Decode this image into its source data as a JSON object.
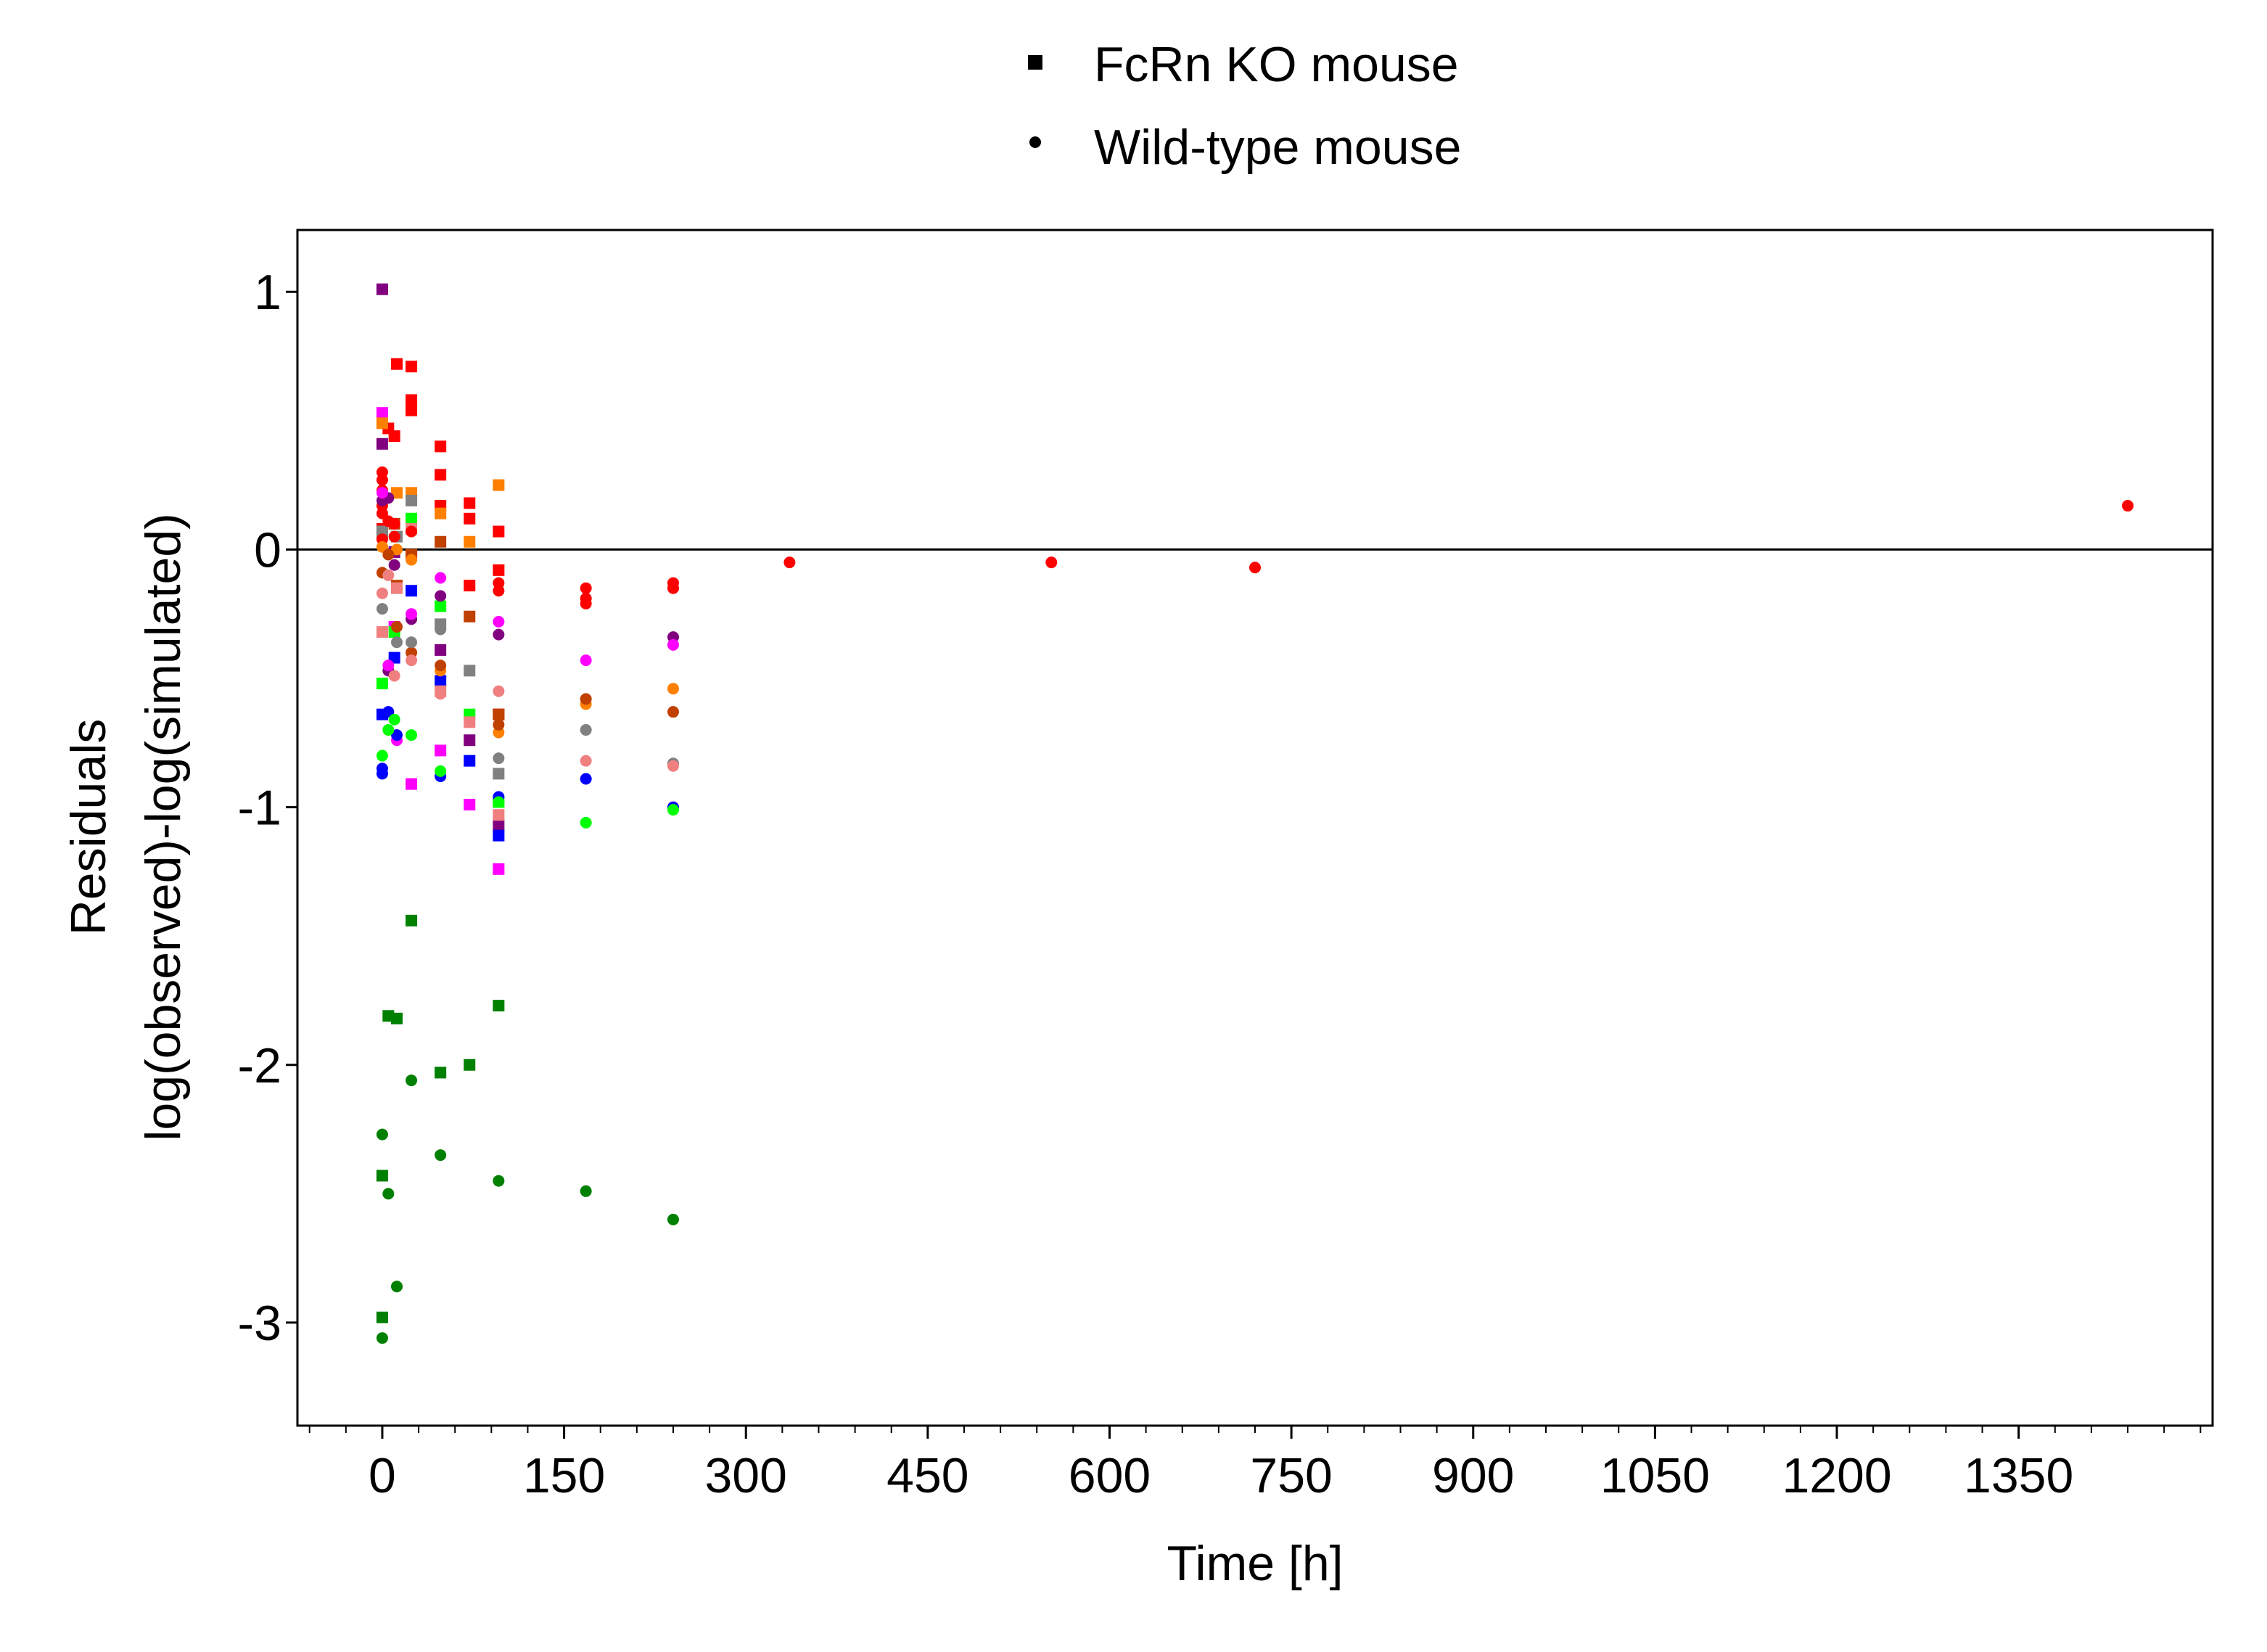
{
  "chart_data": {
    "type": "scatter",
    "xlabel": "Time [h]",
    "ylabel_line1": "Residuals",
    "ylabel_line2": "log(observed)-log(simulated)",
    "xlim": [
      -70,
      1510
    ],
    "ylim": [
      -3.4,
      1.24
    ],
    "x_ticks": [
      0,
      150,
      300,
      450,
      600,
      750,
      900,
      1050,
      1200,
      1350
    ],
    "x_tick_labels": [
      "0",
      "150",
      "300",
      "450",
      "600",
      "750",
      "900",
      "1050",
      "1200",
      "1350"
    ],
    "x_minor_step": 30,
    "y_ticks": [
      1,
      0,
      -1,
      -2,
      -3
    ],
    "y_tick_labels": [
      "1",
      "0",
      "-1",
      "-2",
      "-3"
    ],
    "reference_line_y": 0,
    "grid": false,
    "legend": {
      "placement": "top-center",
      "entries": [
        {
          "marker": "square",
          "label": "FcRn KO mouse"
        },
        {
          "marker": "circle",
          "label": "Wild-type mouse"
        }
      ]
    },
    "colors": [
      "#FF0000",
      "#800080",
      "#FF00FF",
      "#0000FF",
      "#00FF00",
      "#008000",
      "#FF8000",
      "#C04000",
      "#808080",
      "#F08080"
    ],
    "series": [
      {
        "marker": "square",
        "color": "#FF0000",
        "points": [
          [
            0,
            0.08
          ],
          [
            5,
            0.47
          ],
          [
            10,
            0.44
          ],
          [
            12,
            0.72
          ],
          [
            24,
            0.71
          ],
          [
            24,
            0.58
          ],
          [
            24,
            0.54
          ],
          [
            48,
            0.4
          ],
          [
            48,
            0.29
          ],
          [
            48,
            0.17
          ],
          [
            72,
            0.18
          ],
          [
            72,
            0.12
          ],
          [
            72,
            -0.14
          ],
          [
            96,
            0.07
          ],
          [
            96,
            -0.08
          ],
          [
            96,
            -0.64
          ]
        ]
      },
      {
        "marker": "square",
        "color": "#800080",
        "points": [
          [
            0,
            1.01
          ],
          [
            0,
            0.41
          ],
          [
            10,
            -0.01
          ],
          [
            24,
            -0.02
          ],
          [
            48,
            -0.39
          ],
          [
            72,
            -0.74
          ],
          [
            96,
            -1.07
          ]
        ]
      },
      {
        "marker": "square",
        "color": "#FF00FF",
        "points": [
          [
            0,
            0.53
          ],
          [
            10,
            -0.3
          ],
          [
            24,
            -0.91
          ],
          [
            48,
            -0.78
          ],
          [
            72,
            -0.99
          ],
          [
            96,
            -1.24
          ]
        ]
      },
      {
        "marker": "square",
        "color": "#0000FF",
        "points": [
          [
            0,
            -0.64
          ],
          [
            10,
            -0.42
          ],
          [
            24,
            -0.16
          ],
          [
            48,
            -0.51
          ],
          [
            72,
            -0.82
          ],
          [
            96,
            -1.11
          ]
        ]
      },
      {
        "marker": "square",
        "color": "#00FF00",
        "points": [
          [
            0,
            -0.52
          ],
          [
            10,
            -0.32
          ],
          [
            24,
            0.12
          ],
          [
            48,
            -0.22
          ],
          [
            72,
            -0.64
          ],
          [
            96,
            -0.98
          ]
        ]
      },
      {
        "marker": "square",
        "color": "#008000",
        "points": [
          [
            0,
            -2.98
          ],
          [
            0,
            -2.43
          ],
          [
            5,
            -1.81
          ],
          [
            12,
            -1.82
          ],
          [
            24,
            -1.44
          ],
          [
            48,
            -2.03
          ],
          [
            72,
            -2.0
          ],
          [
            96,
            -1.77
          ]
        ]
      },
      {
        "marker": "square",
        "color": "#FF8000",
        "points": [
          [
            0,
            0.49
          ],
          [
            12,
            0.22
          ],
          [
            24,
            0.22
          ],
          [
            48,
            0.14
          ],
          [
            72,
            0.03
          ],
          [
            96,
            0.25
          ]
        ]
      },
      {
        "marker": "square",
        "color": "#C04000",
        "points": [
          [
            0,
            0.06
          ],
          [
            10,
            0.1
          ],
          [
            12,
            -0.14
          ],
          [
            24,
            -0.02
          ],
          [
            48,
            0.03
          ],
          [
            72,
            -0.26
          ],
          [
            96,
            -0.64
          ]
        ]
      },
      {
        "marker": "square",
        "color": "#808080",
        "points": [
          [
            0,
            0.07
          ],
          [
            12,
            0.05
          ],
          [
            24,
            0.19
          ],
          [
            48,
            -0.29
          ],
          [
            72,
            -0.47
          ],
          [
            96,
            -0.87
          ]
        ]
      },
      {
        "marker": "square",
        "color": "#F08080",
        "points": [
          [
            0,
            -0.32
          ],
          [
            12,
            -0.15
          ],
          [
            24,
            0.08
          ],
          [
            48,
            -0.55
          ],
          [
            72,
            -0.67
          ],
          [
            96,
            -1.03
          ]
        ]
      },
      {
        "marker": "circle",
        "color": "#FF0000",
        "points": [
          [
            0,
            0.3
          ],
          [
            0,
            0.27
          ],
          [
            0,
            0.23
          ],
          [
            0,
            0.17
          ],
          [
            0,
            0.14
          ],
          [
            0,
            0.04
          ],
          [
            5,
            0.11
          ],
          [
            10,
            0.1
          ],
          [
            10,
            0.05
          ],
          [
            24,
            0.07
          ],
          [
            96,
            -0.13
          ],
          [
            96,
            -0.16
          ],
          [
            168,
            -0.15
          ],
          [
            168,
            -0.19
          ],
          [
            168,
            -0.21
          ],
          [
            240,
            -0.13
          ],
          [
            240,
            -0.15
          ],
          [
            336,
            -0.05
          ],
          [
            552,
            -0.05
          ],
          [
            720,
            -0.07
          ],
          [
            1440,
            0.17
          ]
        ]
      },
      {
        "marker": "circle",
        "color": "#800080",
        "points": [
          [
            0,
            0.19
          ],
          [
            5,
            0.2
          ],
          [
            5,
            -0.47
          ],
          [
            10,
            -0.06
          ],
          [
            24,
            -0.27
          ],
          [
            48,
            -0.18
          ],
          [
            96,
            -0.33
          ],
          [
            240,
            -0.34
          ]
        ]
      },
      {
        "marker": "circle",
        "color": "#FF00FF",
        "points": [
          [
            0,
            0.22
          ],
          [
            5,
            -0.45
          ],
          [
            12,
            -0.74
          ],
          [
            24,
            -0.25
          ],
          [
            48,
            -0.11
          ],
          [
            96,
            -0.28
          ],
          [
            168,
            -0.43
          ],
          [
            240,
            -0.37
          ]
        ]
      },
      {
        "marker": "circle",
        "color": "#0000FF",
        "points": [
          [
            0,
            -0.85
          ],
          [
            0,
            -0.87
          ],
          [
            5,
            -0.63
          ],
          [
            12,
            -0.72
          ],
          [
            48,
            -0.88
          ],
          [
            96,
            -0.96
          ],
          [
            168,
            -0.89
          ],
          [
            240,
            -1.0
          ]
        ]
      },
      {
        "marker": "circle",
        "color": "#00FF00",
        "points": [
          [
            0,
            -0.8
          ],
          [
            5,
            -0.7
          ],
          [
            10,
            -0.66
          ],
          [
            24,
            -0.72
          ],
          [
            48,
            -0.86
          ],
          [
            96,
            -0.98
          ],
          [
            168,
            -1.06
          ],
          [
            240,
            -1.01
          ]
        ]
      },
      {
        "marker": "circle",
        "color": "#008000",
        "points": [
          [
            0,
            -2.27
          ],
          [
            0,
            -3.06
          ],
          [
            5,
            -2.5
          ],
          [
            12,
            -2.86
          ],
          [
            24,
            -2.06
          ],
          [
            48,
            -2.35
          ],
          [
            96,
            -2.45
          ],
          [
            168,
            -2.49
          ],
          [
            240,
            -2.6
          ]
        ]
      },
      {
        "marker": "circle",
        "color": "#FF8000",
        "points": [
          [
            0,
            0.01
          ],
          [
            12,
            0.0
          ],
          [
            24,
            -0.04
          ],
          [
            48,
            -0.47
          ],
          [
            96,
            -0.71
          ],
          [
            168,
            -0.6
          ],
          [
            240,
            -0.54
          ]
        ]
      },
      {
        "marker": "circle",
        "color": "#C04000",
        "points": [
          [
            0,
            -0.09
          ],
          [
            5,
            -0.02
          ],
          [
            12,
            -0.3
          ],
          [
            24,
            -0.4
          ],
          [
            48,
            -0.45
          ],
          [
            96,
            -0.68
          ],
          [
            168,
            -0.58
          ],
          [
            240,
            -0.63
          ]
        ]
      },
      {
        "marker": "circle",
        "color": "#808080",
        "points": [
          [
            0,
            -0.23
          ],
          [
            12,
            -0.36
          ],
          [
            24,
            -0.36
          ],
          [
            48,
            -0.31
          ],
          [
            96,
            -0.81
          ],
          [
            168,
            -0.7
          ],
          [
            240,
            -0.83
          ]
        ]
      },
      {
        "marker": "circle",
        "color": "#F08080",
        "points": [
          [
            0,
            -0.17
          ],
          [
            5,
            -0.1
          ],
          [
            10,
            -0.49
          ],
          [
            24,
            -0.43
          ],
          [
            48,
            -0.56
          ],
          [
            96,
            -0.55
          ],
          [
            168,
            -0.82
          ],
          [
            240,
            -0.84
          ]
        ]
      }
    ]
  }
}
